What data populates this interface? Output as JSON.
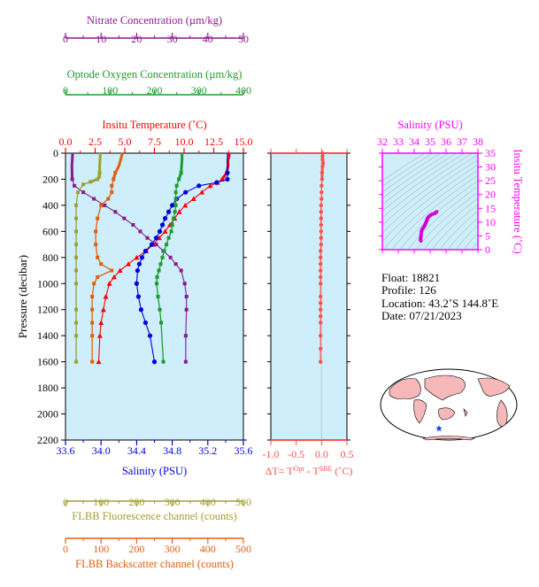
{
  "colors": {
    "nitrate": "#8b1a8b",
    "oxygen": "#1e9b2e",
    "temperature": "#ff0000",
    "salinity": "#0000dd",
    "fluorescence": "#a0a030",
    "backscatter": "#e06010",
    "delta": "#ff5050",
    "inset_axis": "#ff00ff",
    "panel_bg": "#cdeefa",
    "world_land": "#f6b8b8",
    "world_ocean": "#ffffff"
  },
  "float_info": {
    "float": "Float:  18821",
    "profile": "Profile:  126",
    "location": "Location:  43.2˚S  144.8˚E",
    "date": "Date:  07/21/2023"
  },
  "chart_data": [
    {
      "type": "line",
      "title": "",
      "ylabel": "Pressure (decibar)",
      "ylim": [
        2200,
        0
      ],
      "yticks": [
        "0",
        "200",
        "400",
        "600",
        "800",
        "1000",
        "1200",
        "1400",
        "1600",
        "1800",
        "2000",
        "2200"
      ],
      "axes": {
        "nitrate": {
          "label": "Nitrate Concentration (µm/kg)",
          "range": [
            0,
            50
          ],
          "ticks": [
            "0",
            "10",
            "20",
            "30",
            "40",
            "50"
          ]
        },
        "oxygen": {
          "label": "Optode Oxygen Concentration (µm/kg)",
          "range": [
            0,
            400
          ],
          "ticks": [
            "0",
            "100",
            "200",
            "300",
            "400"
          ]
        },
        "temperature": {
          "label": "Insitu Temperature (˚C)",
          "range": [
            0,
            15
          ],
          "ticks": [
            "0.0",
            "2.5",
            "5.0",
            "7.5",
            "10.0",
            "12.5",
            "15.0"
          ]
        },
        "salinity": {
          "label": "Salinity (PSU)",
          "range": [
            33.6,
            35.6
          ],
          "ticks": [
            "33.6",
            "34.0",
            "34.4",
            "34.8",
            "35.2",
            "35.6"
          ]
        },
        "fluorescence": {
          "label": "FLBB Fluorescence channel (counts)",
          "range": [
            0,
            500
          ],
          "ticks": [
            "0",
            "100",
            "200",
            "300",
            "400",
            "500"
          ]
        },
        "backscatter": {
          "label": "FLBB Backscatter channel (counts)",
          "range": [
            0,
            500
          ],
          "ticks": [
            "0",
            "100",
            "200",
            "300",
            "400",
            "500"
          ]
        }
      },
      "series": [
        {
          "key": "temperature",
          "marker": "triangle",
          "x": [
            13.8,
            13.8,
            13.7,
            13.7,
            13.6,
            13.2,
            12.8,
            12.2,
            11.5,
            10.8,
            10.1,
            9.6,
            9.2,
            8.8,
            8.4,
            7.9,
            7.4,
            6.8,
            6.0,
            5.3,
            4.6,
            4.1,
            3.7,
            3.4,
            3.2,
            3.0,
            2.9,
            2.8
          ],
          "p": [
            0,
            25,
            50,
            100,
            150,
            200,
            225,
            250,
            300,
            350,
            400,
            450,
            500,
            550,
            600,
            650,
            700,
            750,
            800,
            850,
            900,
            950,
            1000,
            1100,
            1200,
            1300,
            1400,
            1600
          ]
        },
        {
          "key": "salinity",
          "marker": "circle",
          "x": [
            35.42,
            35.42,
            35.42,
            35.42,
            35.42,
            35.3,
            35.1,
            34.95,
            34.85,
            34.8,
            34.76,
            34.72,
            34.69,
            34.66,
            34.62,
            34.57,
            34.5,
            34.46,
            34.43,
            34.41,
            34.4,
            34.42,
            34.45,
            34.5,
            34.55,
            34.6
          ],
          "p": [
            0,
            50,
            100,
            150,
            200,
            225,
            250,
            300,
            350,
            400,
            450,
            500,
            550,
            600,
            650,
            700,
            750,
            800,
            850,
            900,
            1000,
            1100,
            1200,
            1300,
            1400,
            1600
          ]
        },
        {
          "key": "nitrate",
          "marker": "square",
          "x": [
            2.0,
            1.8,
            1.9,
            2.5,
            5.0,
            8.0,
            11.0,
            14.0,
            16.5,
            19.0,
            21.0,
            23.0,
            25.5,
            27.5,
            29.5,
            31.0,
            32.5,
            33.5,
            34.0,
            34.0,
            33.8,
            33.8
          ],
          "p": [
            0,
            100,
            200,
            250,
            300,
            350,
            400,
            450,
            500,
            550,
            600,
            650,
            700,
            750,
            800,
            850,
            900,
            1000,
            1100,
            1200,
            1400,
            1600
          ]
        },
        {
          "key": "oxygen",
          "marker": "square",
          "x": [
            262,
            262,
            261,
            260,
            255,
            250,
            248,
            248,
            248,
            246,
            243,
            240,
            238,
            232,
            227,
            222,
            218,
            214,
            210,
            206,
            205,
            208,
            212,
            215,
            220
          ],
          "p": [
            0,
            50,
            100,
            150,
            200,
            250,
            300,
            350,
            400,
            450,
            500,
            550,
            600,
            650,
            700,
            750,
            800,
            850,
            900,
            950,
            1000,
            1100,
            1200,
            1300,
            1600
          ]
        },
        {
          "key": "fluorescence",
          "marker": "square",
          "x": [
            98,
            97,
            96,
            96,
            95,
            90,
            70,
            50,
            35,
            30,
            30,
            30,
            30,
            30,
            30,
            30,
            30,
            30,
            30,
            30
          ],
          "p": [
            0,
            50,
            100,
            150,
            180,
            200,
            220,
            240,
            300,
            400,
            500,
            600,
            700,
            800,
            900,
            1000,
            1200,
            1300,
            1400,
            1600
          ]
        },
        {
          "key": "backscatter",
          "marker": "square",
          "x": [
            160,
            155,
            150,
            140,
            135,
            130,
            130,
            120,
            100,
            90,
            85,
            85,
            90,
            100,
            130,
            90,
            80,
            75,
            75,
            75,
            75,
            75
          ],
          "p": [
            0,
            50,
            100,
            150,
            200,
            250,
            300,
            350,
            400,
            500,
            600,
            700,
            800,
            850,
            900,
            950,
            1000,
            1100,
            1200,
            1300,
            1400,
            1600
          ]
        }
      ]
    },
    {
      "type": "line",
      "title": "",
      "xlabel": "ΔT= T<sup>Opt</sup> - T<sup>SBE</sup> (˚C)",
      "xlabel_parts": [
        "ΔT= T",
        "Opt",
        " - T",
        "SBE",
        " (˚C)"
      ],
      "xlim": [
        -1.0,
        0.5
      ],
      "xticks": [
        "-1.0",
        "-0.5",
        "0.0",
        "0.5"
      ],
      "ylim": [
        2200,
        0
      ],
      "series": [
        {
          "key": "delta",
          "marker": "circle",
          "x": [
            0.02,
            0.02,
            0.02,
            0.03,
            0.02,
            0.01,
            0.01,
            0.0,
            0.0,
            0.0,
            -0.01,
            -0.01,
            -0.01,
            -0.01,
            -0.01,
            -0.01,
            -0.01,
            -0.02,
            -0.02,
            -0.02,
            -0.02,
            -0.02,
            -0.02,
            -0.02,
            -0.02,
            -0.02,
            -0.02,
            -0.02,
            -0.02,
            -0.02,
            -0.02
          ],
          "p": [
            0,
            25,
            50,
            75,
            100,
            150,
            200,
            250,
            300,
            350,
            400,
            450,
            500,
            550,
            600,
            650,
            700,
            750,
            800,
            850,
            900,
            950,
            1000,
            1100,
            1150,
            1200,
            1250,
            1300,
            1400,
            1500,
            1600
          ]
        }
      ]
    },
    {
      "type": "scatter",
      "title": "",
      "xlabel": "Salinity (PSU)",
      "ylabel": "Insitu Temperature (˚C)",
      "xlim": [
        32,
        38
      ],
      "ylim": [
        0,
        35
      ],
      "xticks": [
        "32",
        "33",
        "34",
        "35",
        "36",
        "37",
        "38"
      ],
      "yticks": [
        "0",
        "5",
        "10",
        "15",
        "20",
        "25",
        "30",
        "35"
      ],
      "series": [
        {
          "key": "ts",
          "x": [
            34.42,
            34.4,
            34.41,
            34.43,
            34.46,
            34.5,
            34.57,
            34.62,
            34.66,
            34.69,
            34.72,
            34.76,
            34.8,
            34.85,
            34.95,
            35.1,
            35.3,
            35.42
          ],
          "y": [
            3.2,
            3.4,
            4.1,
            5.3,
            6.8,
            7.4,
            7.9,
            8.4,
            8.8,
            9.2,
            9.6,
            10.1,
            10.8,
            11.5,
            12.2,
            12.8,
            13.2,
            13.8
          ]
        }
      ]
    }
  ]
}
